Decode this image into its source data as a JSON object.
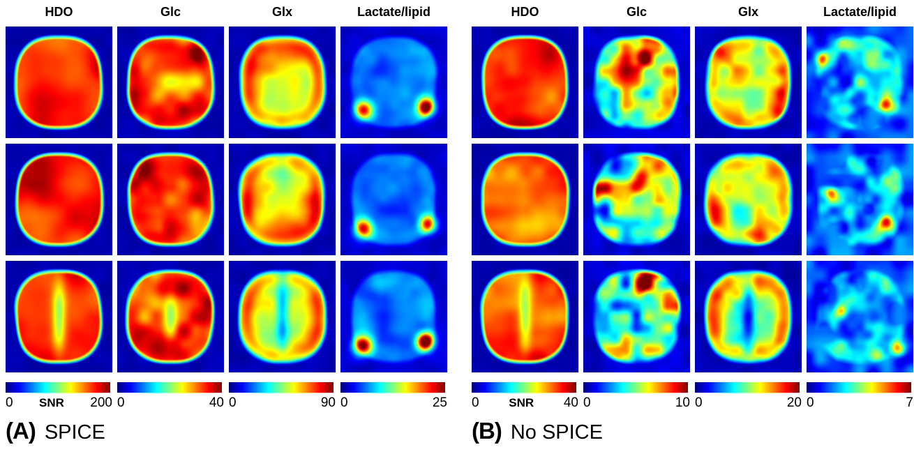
{
  "figure": {
    "colormap": "jet",
    "panels": [
      {
        "label": "(A)",
        "name": "SPICE",
        "rows": 3,
        "columns": [
          {
            "key": "hdo",
            "label": "HDO",
            "cbar_min": "0",
            "cbar_max": "200",
            "snr_label": "SNR"
          },
          {
            "key": "glc",
            "label": "Glc",
            "cbar_min": "0",
            "cbar_max": "40"
          },
          {
            "key": "glx",
            "label": "Glx",
            "cbar_min": "0",
            "cbar_max": "90"
          },
          {
            "key": "lactate-lipid",
            "label": "Lactate/lipid",
            "cbar_min": "0",
            "cbar_max": "25"
          }
        ]
      },
      {
        "label": "(B)",
        "name": "No SPICE",
        "rows": 3,
        "columns": [
          {
            "key": "hdo",
            "label": "HDO",
            "cbar_min": "0",
            "cbar_max": "40",
            "snr_label": "SNR"
          },
          {
            "key": "glc",
            "label": "Glc",
            "cbar_min": "0",
            "cbar_max": "10"
          },
          {
            "key": "glx",
            "label": "Glx",
            "cbar_min": "0",
            "cbar_max": "20"
          },
          {
            "key": "lactate-lipid",
            "label": "Lactate/lipid",
            "cbar_min": "0",
            "cbar_max": "7"
          }
        ]
      }
    ]
  },
  "chart_data": {
    "type": "heatmap",
    "colormap": "jet",
    "value_label": "SNR",
    "panels": [
      {
        "label": "(A) SPICE",
        "maps": [
          "HDO",
          "Glc",
          "Glx",
          "Lactate/lipid"
        ],
        "slices": 3,
        "snr_ranges": {
          "HDO": [
            0,
            200
          ],
          "Glc": [
            0,
            40
          ],
          "Glx": [
            0,
            90
          ],
          "Lactate/lipid": [
            0,
            25
          ]
        }
      },
      {
        "label": "(B) No SPICE",
        "maps": [
          "HDO",
          "Glc",
          "Glx",
          "Lactate/lipid"
        ],
        "slices": 3,
        "snr_ranges": {
          "HDO": [
            0,
            40
          ],
          "Glc": [
            0,
            10
          ],
          "Glx": [
            0,
            20
          ],
          "Lactate/lipid": [
            0,
            7
          ]
        }
      }
    ]
  }
}
